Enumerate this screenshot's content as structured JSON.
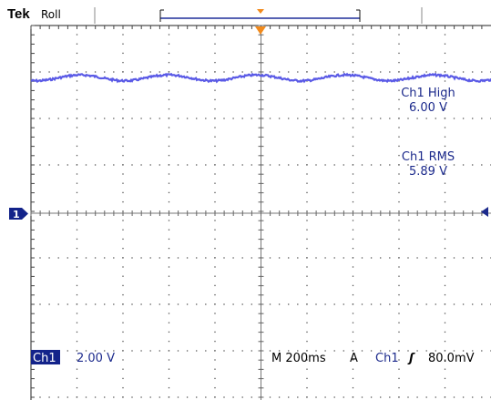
{
  "header": {
    "brand": "Tek",
    "mode": "Roll"
  },
  "measurements": [
    {
      "label": "Ch1 High",
      "value": "6.00 V"
    },
    {
      "label": "Ch1 RMS",
      "value": "5.89 V"
    }
  ],
  "ground_marker": "1",
  "status": {
    "channel": "Ch1",
    "vertical_scale": "2.00 V",
    "timebase": "M 200ms",
    "trigger_mode": "A",
    "trigger_source": "Ch1",
    "trigger_slope": "ʃ",
    "trigger_level": "80.0mV"
  },
  "colors": {
    "trace": "#5a5ae6",
    "text_blue": "#1c2a8c",
    "badge_bg": "#13238a",
    "marker": "#f28a1c",
    "grid_dots": "#555555"
  }
}
